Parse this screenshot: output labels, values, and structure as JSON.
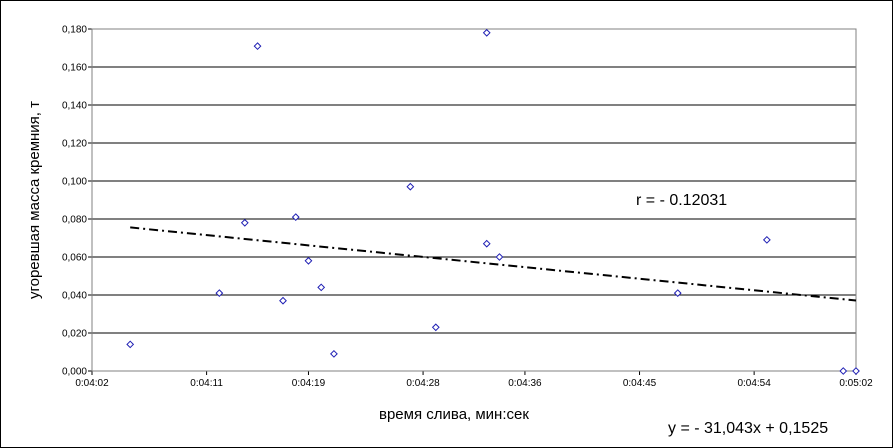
{
  "chart_data": {
    "type": "scatter",
    "title": "",
    "xlabel": "время слива, мин:сек",
    "ylabel": "угоревшая масса кремния, т",
    "xlim": [
      "0:04:02",
      "0:05:02"
    ],
    "ylim": [
      0,
      0.18
    ],
    "x_ticks": [
      "0:04:02",
      "0:04:11",
      "0:04:19",
      "0:04:28",
      "0:04:36",
      "0:04:45",
      "0:04:54",
      "0:05:02"
    ],
    "y_ticks": [
      "0,000",
      "0,020",
      "0,040",
      "0,060",
      "0,080",
      "0,100",
      "0,120",
      "0,140",
      "0,160",
      "0,180"
    ],
    "grid": "horizontal",
    "marker": "diamond-open",
    "marker_color": "#1f1fb4",
    "trendline": {
      "type": "linear",
      "style": "dash-dot",
      "color": "#000000"
    },
    "points": [
      {
        "x": "0:04:05",
        "y": 0.014
      },
      {
        "x": "0:04:12",
        "y": 0.041
      },
      {
        "x": "0:04:14",
        "y": 0.078
      },
      {
        "x": "0:04:15",
        "y": 0.171
      },
      {
        "x": "0:04:17",
        "y": 0.037
      },
      {
        "x": "0:04:18",
        "y": 0.081
      },
      {
        "x": "0:04:19",
        "y": 0.058
      },
      {
        "x": "0:04:20",
        "y": 0.044
      },
      {
        "x": "0:04:21",
        "y": 0.009
      },
      {
        "x": "0:04:27",
        "y": 0.097
      },
      {
        "x": "0:04:29",
        "y": 0.023
      },
      {
        "x": "0:04:33",
        "y": 0.178
      },
      {
        "x": "0:04:33",
        "y": 0.067
      },
      {
        "x": "0:04:34",
        "y": 0.06
      },
      {
        "x": "0:04:48",
        "y": 0.041
      },
      {
        "x": "0:04:55",
        "y": 0.069
      },
      {
        "x": "0:05:01",
        "y": 0.0
      },
      {
        "x": "0:05:02",
        "y": 0.0
      }
    ],
    "annotations": {
      "r": "r = - 0.12031",
      "equation": "y = - 31,043x + 0,1525"
    }
  }
}
